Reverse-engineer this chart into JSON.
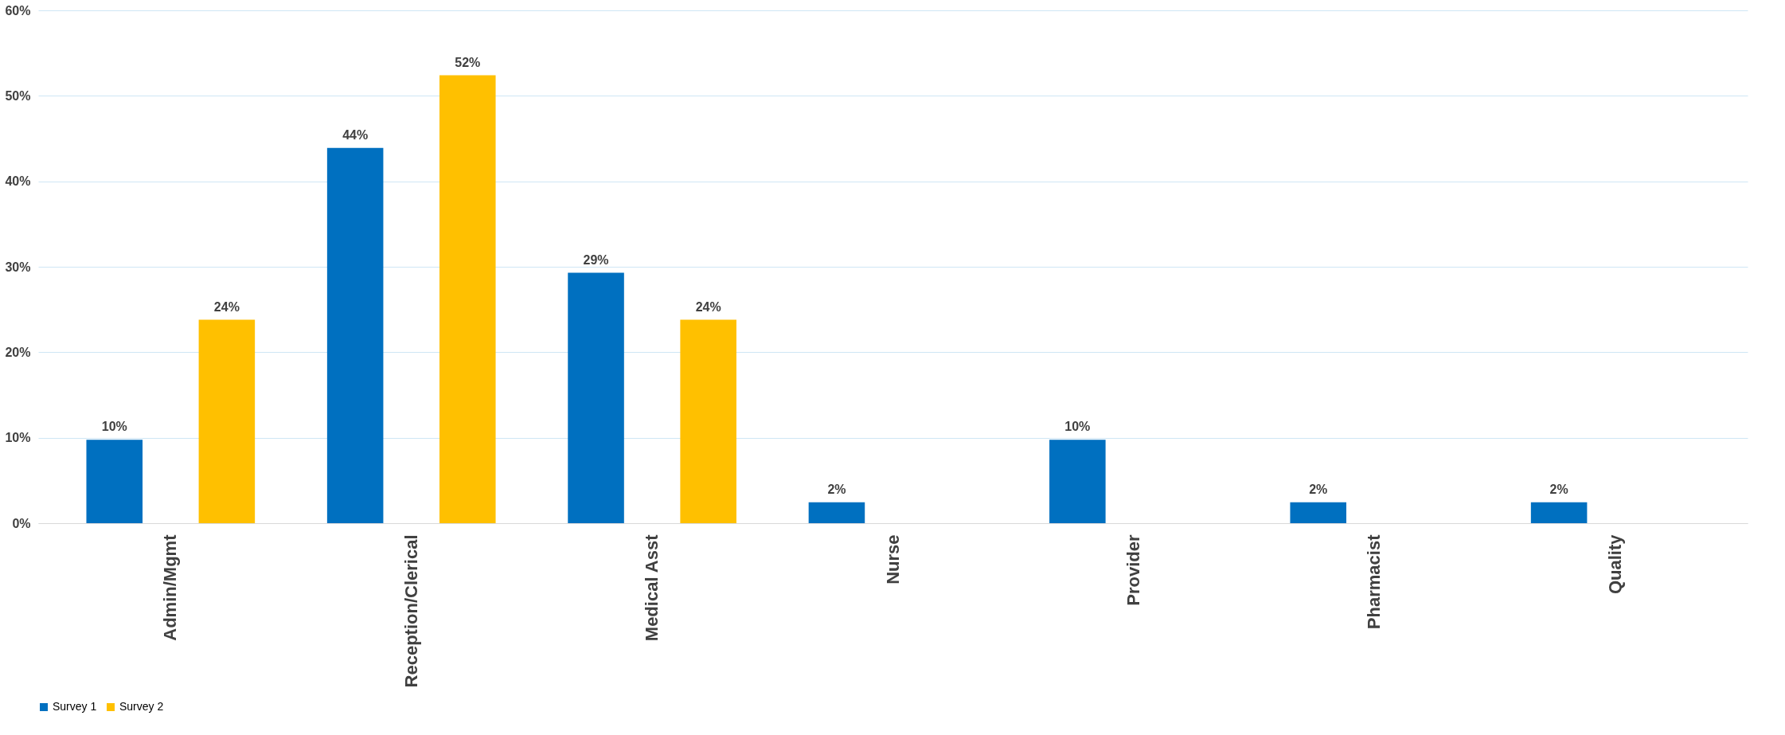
{
  "chart_data": {
    "type": "bar",
    "categories": [
      "Admin/Mgmt",
      "Reception/Clerical",
      "Medical Asst",
      "Nurse",
      "Provider",
      "Pharmacist",
      "Quality"
    ],
    "series": [
      {
        "name": "Survey 1",
        "color": "#0070c0",
        "values": [
          9.76,
          43.9,
          29.3,
          2.44,
          9.76,
          2.44,
          2.44
        ],
        "value_labels": [
          "10%",
          "44%",
          "29%",
          "2%",
          "10%",
          "2%",
          "2%"
        ]
      },
      {
        "name": "Survey 2",
        "color": "#ffc000",
        "values": [
          23.8,
          52.4,
          23.8,
          null,
          null,
          null,
          null
        ],
        "value_labels": [
          "24%",
          "52%",
          "24%",
          null,
          null,
          null,
          null
        ]
      }
    ],
    "ylim": [
      0,
      60
    ],
    "yticks": [
      {
        "value": 0,
        "label": "0%"
      },
      {
        "value": 10,
        "label": "10%"
      },
      {
        "value": 20,
        "label": "20%"
      },
      {
        "value": 30,
        "label": "30%"
      },
      {
        "value": 40,
        "label": "40%"
      },
      {
        "value": 50,
        "label": "50%"
      },
      {
        "value": 60,
        "label": "60%"
      }
    ],
    "grid": "y",
    "legend": "bottom"
  }
}
